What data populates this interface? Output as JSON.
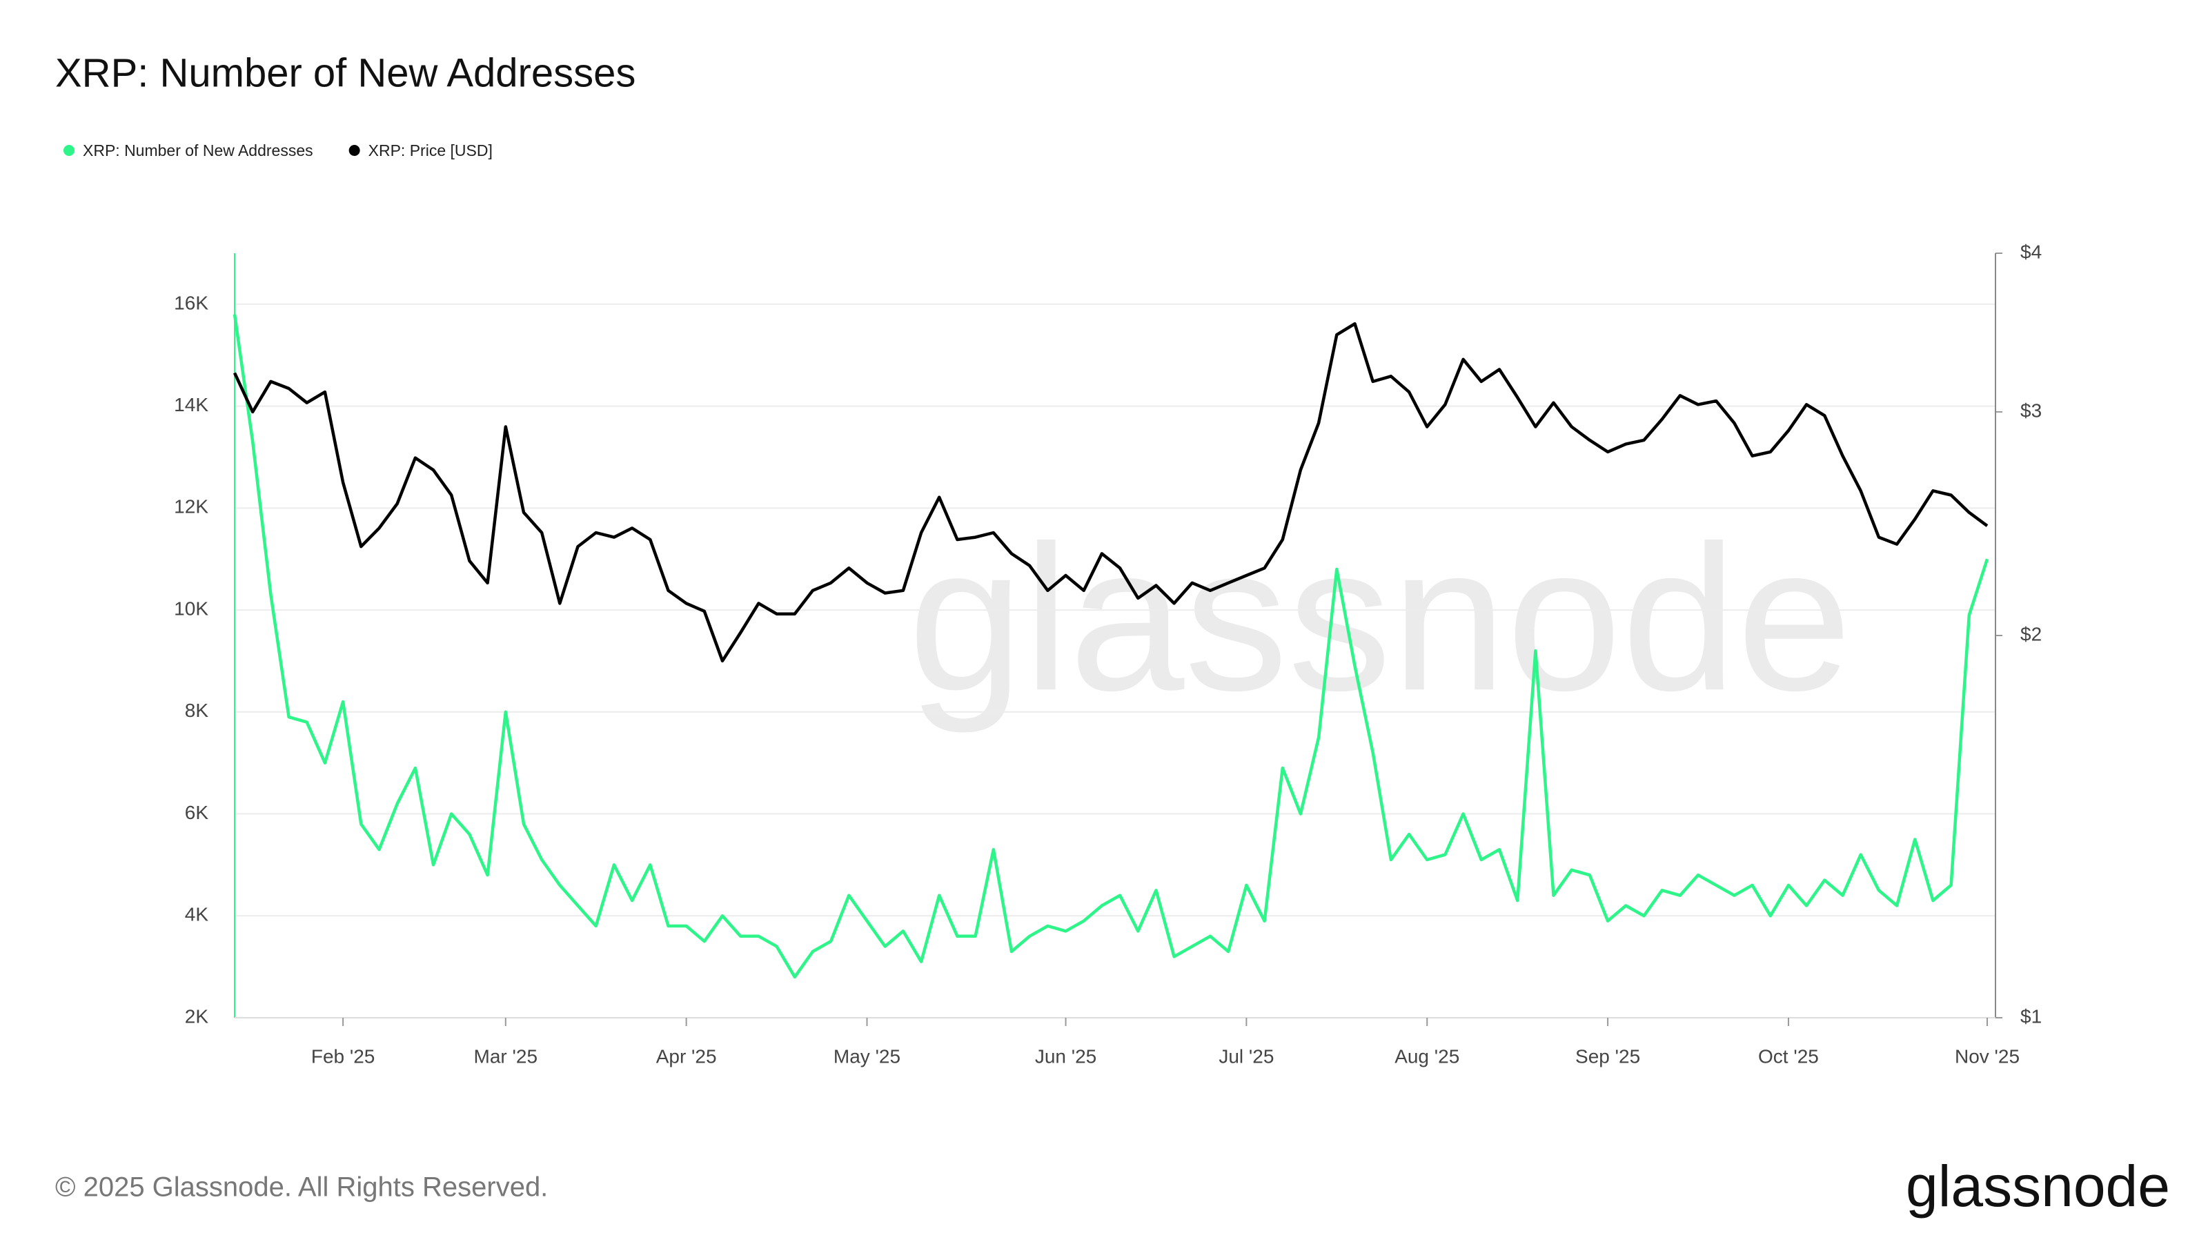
{
  "chart_data": {
    "type": "line",
    "title": "XRP: Number of New Addresses",
    "watermark": "glassnode",
    "footer": "© 2025 Glassnode. All Rights Reserved.",
    "logo": "glassnode",
    "categories": [
      null,
      null,
      null,
      null,
      null,
      null,
      "Feb '25",
      null,
      null,
      null,
      null,
      null,
      null,
      null,
      null,
      "Mar '25",
      null,
      null,
      null,
      null,
      null,
      null,
      null,
      null,
      null,
      "Apr '25",
      null,
      null,
      null,
      null,
      null,
      null,
      null,
      null,
      null,
      "May '25",
      null,
      null,
      null,
      null,
      null,
      null,
      null,
      null,
      null,
      null,
      "Jun '25",
      null,
      null,
      null,
      null,
      null,
      null,
      null,
      null,
      null,
      "Jul '25",
      null,
      null,
      null,
      null,
      null,
      null,
      null,
      null,
      null,
      "Aug '25",
      null,
      null,
      null,
      null,
      null,
      null,
      null,
      null,
      null,
      "Sep '25",
      null,
      null,
      null,
      null,
      null,
      null,
      null,
      null,
      null,
      "Oct '25",
      null,
      null,
      null,
      null,
      null,
      null,
      null,
      null,
      null,
      null,
      "Nov '25"
    ],
    "series": [
      {
        "name": "XRP: Number of New Addresses",
        "color": "#2ef58a",
        "axis": "y",
        "values": [
          15800,
          13300,
          10300,
          7900,
          7800,
          7000,
          8200,
          5800,
          5300,
          6200,
          6900,
          5000,
          6000,
          5600,
          4800,
          8000,
          5800,
          5100,
          4600,
          4200,
          3800,
          5000,
          4300,
          5000,
          3800,
          3800,
          3500,
          4000,
          3600,
          3600,
          3400,
          2800,
          3300,
          3500,
          4400,
          3900,
          3400,
          3700,
          3100,
          4400,
          3600,
          3600,
          5300,
          3300,
          3600,
          3800,
          3700,
          3900,
          4200,
          4400,
          3700,
          4500,
          3200,
          3400,
          3600,
          3300,
          4600,
          3900,
          6900,
          6000,
          7500,
          10800,
          8900,
          7200,
          5100,
          5600,
          5100,
          5200,
          6000,
          5100,
          5300,
          4300,
          9200,
          4400,
          4900,
          4800,
          3900,
          4200,
          4000,
          4500,
          4400,
          4800,
          4600,
          4400,
          4600,
          4000,
          4600,
          4200,
          4700,
          4400,
          5200,
          4500,
          4200,
          5500,
          4300,
          4600,
          9900,
          11000
        ]
      },
      {
        "name": "XRP: Price [USD]",
        "color": "#000000",
        "axis": "y2",
        "values": [
          3.22,
          3.0,
          3.17,
          3.13,
          3.05,
          3.11,
          2.64,
          2.35,
          2.43,
          2.54,
          2.76,
          2.7,
          2.58,
          2.29,
          2.2,
          2.92,
          2.5,
          2.41,
          2.12,
          2.35,
          2.41,
          2.39,
          2.43,
          2.38,
          2.17,
          2.12,
          2.09,
          1.91,
          2.01,
          2.12,
          2.08,
          2.08,
          2.17,
          2.2,
          2.26,
          2.2,
          2.16,
          2.17,
          2.41,
          2.57,
          2.38,
          2.39,
          2.41,
          2.32,
          2.27,
          2.17,
          2.23,
          2.17,
          2.32,
          2.26,
          2.14,
          2.19,
          2.12,
          2.2,
          2.17,
          2.2,
          2.23,
          2.26,
          2.38,
          2.7,
          2.94,
          3.45,
          3.52,
          3.17,
          3.2,
          3.11,
          2.92,
          3.04,
          3.3,
          3.17,
          3.24,
          3.08,
          2.92,
          3.05,
          2.92,
          2.85,
          2.79,
          2.83,
          2.85,
          2.96,
          3.09,
          3.04,
          3.06,
          2.94,
          2.77,
          2.79,
          2.9,
          3.04,
          2.98,
          2.77,
          2.6,
          2.39,
          2.36,
          2.47,
          2.6,
          2.58,
          2.5,
          2.44
        ]
      }
    ],
    "ylim": [
      2000,
      17000
    ],
    "yticks": [
      {
        "value": 2000,
        "label": "2K"
      },
      {
        "value": 4000,
        "label": "4K"
      },
      {
        "value": 6000,
        "label": "6K"
      },
      {
        "value": 8000,
        "label": "8K"
      },
      {
        "value": 10000,
        "label": "10K"
      },
      {
        "value": 12000,
        "label": "12K"
      },
      {
        "value": 14000,
        "label": "14K"
      },
      {
        "value": 16000,
        "label": "16K"
      }
    ],
    "y2lim": [
      1,
      4
    ],
    "y2log": true,
    "y2ticks": [
      {
        "value": 1,
        "label": "$1"
      },
      {
        "value": 2,
        "label": "$2"
      },
      {
        "value": 3,
        "label": "$3"
      },
      {
        "value": 4,
        "label": "$4"
      }
    ],
    "grid": true,
    "legend": "top-left"
  }
}
